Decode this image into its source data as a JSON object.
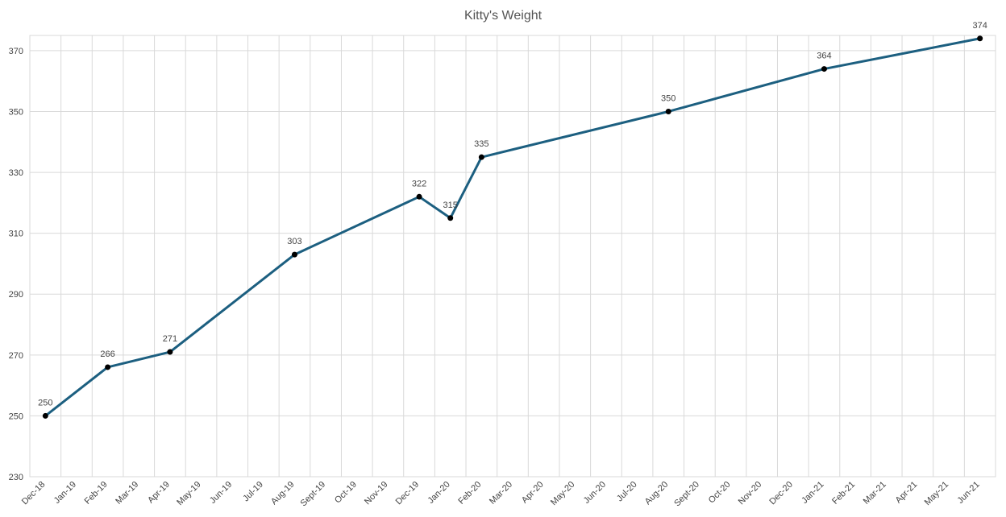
{
  "chart_data": {
    "type": "line",
    "title": "Kitty's Weight",
    "categories": [
      "Dec-18",
      "Jan-19",
      "Feb-19",
      "Mar-19",
      "Apr-19",
      "May-19",
      "Jun-19",
      "Jul-19",
      "Aug-19",
      "Sept-19",
      "Oct-19",
      "Nov-19",
      "Dec-19",
      "Jan-20",
      "Feb-20",
      "Mar-20",
      "Apr-20",
      "May-20",
      "Jun-20",
      "Jul-20",
      "Aug-20",
      "Sept-20",
      "Oct-20",
      "Nov-20",
      "Dec-20",
      "Jan-21",
      "Feb-21",
      "Mar-21",
      "Apr-21",
      "May-21",
      "Jun-21"
    ],
    "x": [
      "Dec-18",
      "Feb-19",
      "Apr-19",
      "Aug-19",
      "Dec-19",
      "Jan-20",
      "Feb-20",
      "Aug-20",
      "Jan-21",
      "Jun-21"
    ],
    "series": [
      {
        "color": "#1c5f80",
        "values": [
          250,
          266,
          271,
          303,
          322,
          315,
          335,
          350,
          364,
          374
        ]
      }
    ],
    "ylim": [
      230,
      375
    ],
    "yticks": [
      230,
      250,
      270,
      290,
      310,
      330,
      350,
      370
    ],
    "grid": true
  }
}
